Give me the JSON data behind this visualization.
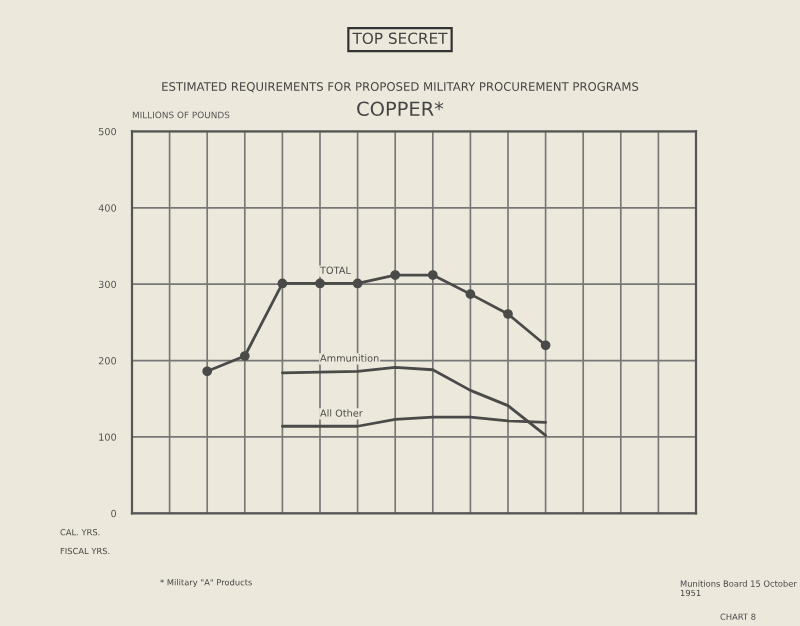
{
  "chart_data": {
    "type": "line",
    "title": "ESTIMATED REQUIREMENTS FOR PROPOSED MILITARY PROCUREMENT PROGRAMS",
    "subtitle": "COPPER*",
    "ylabel": "MILLIONS OF POUNDS",
    "categories": [
      null,
      null,
      null,
      null,
      null,
      null,
      null,
      null,
      null,
      null,
      null,
      null,
      null,
      null,
      null,
      null
    ],
    "series": [
      {
        "name": "TOTAL",
        "color": "#4a4a48",
        "marker": "circle",
        "values": [
          null,
          null,
          186,
          206,
          301,
          301,
          301,
          312,
          312,
          287,
          261,
          220,
          null,
          null,
          null,
          null
        ]
      },
      {
        "name": "Ammunition",
        "color": "#4a4a48",
        "marker": "none",
        "values": [
          null,
          null,
          null,
          null,
          184,
          185,
          186,
          191,
          188,
          161,
          141,
          102,
          null,
          null,
          null,
          null
        ]
      },
      {
        "name": "All Other",
        "color": "#4a4a48",
        "marker": "none",
        "values": [
          null,
          null,
          null,
          null,
          114,
          114,
          114,
          123,
          126,
          126,
          121,
          119,
          null,
          null,
          null,
          null
        ]
      }
    ],
    "ylim": [
      0,
      500
    ],
    "yticks": [
      0,
      100,
      200,
      300,
      400,
      500
    ],
    "grid": true,
    "line_style": "solid",
    "annotations": [
      "TOP SECRET",
      "CAL. YRS.",
      "FISCAL YRS.",
      "* Military \"A\" Products",
      "Munitions Board 15 October 1951",
      "CHART 8"
    ]
  }
}
